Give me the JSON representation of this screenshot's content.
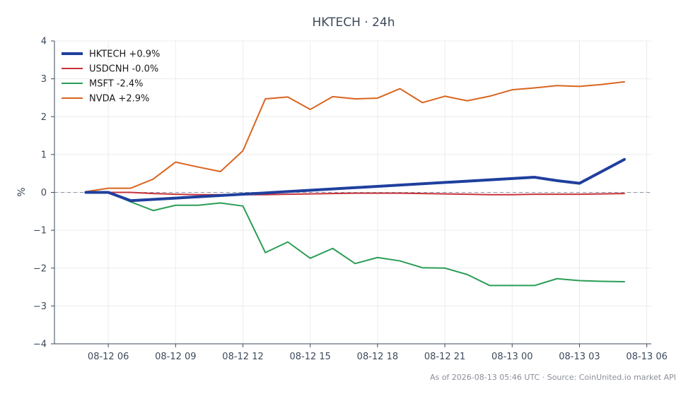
{
  "chart_data": {
    "type": "line",
    "title": "HKTECH · 24h",
    "xlabel": "",
    "ylabel": "%",
    "ylim": [
      -4,
      4
    ],
    "xlim": [
      "2026-08-12 03:36",
      "2026-08-13 06:12"
    ],
    "grid": true,
    "legend_position": "top-left",
    "zero_reference_line": true,
    "x_ticks": [
      {
        "at": "2026-08-12 06:00",
        "label": "08-12 06"
      },
      {
        "at": "2026-08-12 09:00",
        "label": "08-12 09"
      },
      {
        "at": "2026-08-12 12:00",
        "label": "08-12 12"
      },
      {
        "at": "2026-08-12 15:00",
        "label": "08-12 15"
      },
      {
        "at": "2026-08-12 18:00",
        "label": "08-12 18"
      },
      {
        "at": "2026-08-12 21:00",
        "label": "08-12 21"
      },
      {
        "at": "2026-08-13 00:00",
        "label": "08-13 00"
      },
      {
        "at": "2026-08-13 03:00",
        "label": "08-13 03"
      },
      {
        "at": "2026-08-13 06:00",
        "label": "08-13 06"
      }
    ],
    "y_ticks": [
      4,
      3,
      2,
      1,
      0,
      -1,
      -2,
      -3,
      -4
    ],
    "y_tick_labels": [
      "4",
      "3",
      "2",
      "1",
      "0",
      "−1",
      "−2",
      "−3",
      "−4"
    ],
    "series": [
      {
        "name": "HKTECH +0.9%",
        "color": "#1f3f9e",
        "x": [
          "2026-08-12 05:00",
          "2026-08-12 06:00",
          "2026-08-12 07:00",
          "2026-08-13 01:00",
          "2026-08-13 02:00",
          "2026-08-13 03:00",
          "2026-08-13 05:00"
        ],
        "values": [
          0.0,
          0.0,
          -0.22,
          0.4,
          0.31,
          0.24,
          0.87
        ]
      },
      {
        "name": "USDCNH -0.0%",
        "color": "#c8313a",
        "x": [
          "2026-08-12 05:00",
          "2026-08-12 06:00",
          "2026-08-12 07:00",
          "2026-08-12 08:00",
          "2026-08-12 09:00",
          "2026-08-12 10:00",
          "2026-08-12 11:00",
          "2026-08-12 12:00",
          "2026-08-12 13:00",
          "2026-08-12 14:00",
          "2026-08-12 15:00",
          "2026-08-12 16:00",
          "2026-08-12 17:00",
          "2026-08-12 18:00",
          "2026-08-12 19:00",
          "2026-08-12 20:00",
          "2026-08-12 21:00",
          "2026-08-12 22:00",
          "2026-08-12 23:00",
          "2026-08-13 00:00",
          "2026-08-13 01:00",
          "2026-08-13 02:00",
          "2026-08-13 03:00",
          "2026-08-13 04:00",
          "2026-08-13 05:00"
        ],
        "values": [
          0.0,
          0.0,
          0.0,
          -0.03,
          -0.05,
          -0.06,
          -0.06,
          -0.06,
          -0.06,
          -0.05,
          -0.04,
          -0.03,
          -0.02,
          -0.02,
          -0.02,
          -0.03,
          -0.04,
          -0.05,
          -0.06,
          -0.06,
          -0.05,
          -0.05,
          -0.05,
          -0.04,
          -0.03
        ]
      },
      {
        "name": "MSFT -2.4%",
        "color": "#2a9d55",
        "x": [
          "2026-08-12 05:00",
          "2026-08-12 06:00",
          "2026-08-12 07:00",
          "2026-08-12 08:00",
          "2026-08-12 09:00",
          "2026-08-12 10:00",
          "2026-08-12 11:00",
          "2026-08-12 12:00",
          "2026-08-12 13:00",
          "2026-08-12 14:00",
          "2026-08-12 15:00",
          "2026-08-12 16:00",
          "2026-08-12 17:00",
          "2026-08-12 18:00",
          "2026-08-12 19:00",
          "2026-08-12 20:00",
          "2026-08-12 21:00",
          "2026-08-12 22:00",
          "2026-08-12 23:00",
          "2026-08-13 00:00",
          "2026-08-13 01:00",
          "2026-08-13 02:00",
          "2026-08-13 03:00",
          "2026-08-13 04:00",
          "2026-08-13 05:00"
        ],
        "values": [
          0.0,
          0.0,
          -0.25,
          -0.48,
          -0.34,
          -0.34,
          -0.28,
          -0.36,
          -1.59,
          -1.31,
          -1.74,
          -1.48,
          -1.88,
          -1.72,
          -1.81,
          -1.99,
          -2.0,
          -2.17,
          -2.46,
          -2.46,
          -2.46,
          -2.28,
          -2.33,
          -2.35,
          -2.36
        ]
      },
      {
        "name": "NVDA +2.9%",
        "color": "#d9651f",
        "x": [
          "2026-08-12 05:00",
          "2026-08-12 06:00",
          "2026-08-12 07:00",
          "2026-08-12 08:00",
          "2026-08-12 09:00",
          "2026-08-12 10:00",
          "2026-08-12 11:00",
          "2026-08-12 12:00",
          "2026-08-12 13:00",
          "2026-08-12 14:00",
          "2026-08-12 15:00",
          "2026-08-12 16:00",
          "2026-08-12 17:00",
          "2026-08-12 18:00",
          "2026-08-12 19:00",
          "2026-08-12 20:00",
          "2026-08-12 21:00",
          "2026-08-12 22:00",
          "2026-08-12 23:00",
          "2026-08-13 00:00",
          "2026-08-13 01:00",
          "2026-08-13 02:00",
          "2026-08-13 03:00",
          "2026-08-13 04:00",
          "2026-08-13 05:00"
        ],
        "values": [
          0.02,
          0.11,
          0.11,
          0.35,
          0.8,
          0.67,
          0.55,
          1.1,
          2.47,
          2.52,
          2.19,
          2.53,
          2.47,
          2.49,
          2.74,
          2.37,
          2.54,
          2.42,
          2.54,
          2.71,
          2.76,
          2.82,
          2.8,
          2.85,
          2.92
        ]
      }
    ]
  },
  "footer": {
    "source_note": "As of 2026-08-13 05:46 UTC · Source: CoinUnited.io market API"
  }
}
